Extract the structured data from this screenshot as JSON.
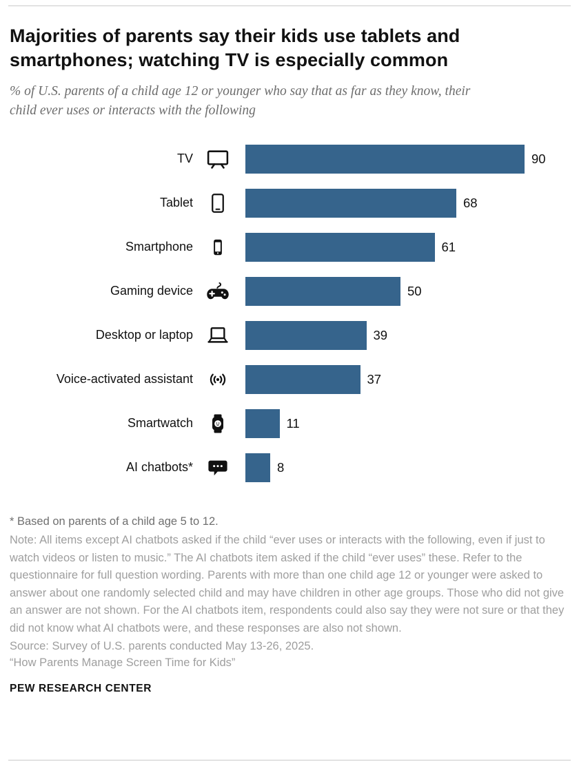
{
  "header": {
    "title": "Majorities of parents say their kids use tablets and smartphones; watching TV is especially common",
    "subtitle": "% of U.S. parents of a child age 12 or younger who say that as far as they know, their child ever uses or interacts with the following"
  },
  "chart_data": {
    "type": "bar",
    "orientation": "horizontal",
    "categories": [
      "TV",
      "Tablet",
      "Smartphone",
      "Gaming device",
      "Desktop or laptop",
      "Voice-activated assistant",
      "Smartwatch",
      "AI chatbots*"
    ],
    "values": [
      90,
      68,
      61,
      50,
      39,
      37,
      11,
      8
    ],
    "icons": [
      "tv-icon",
      "tablet-icon",
      "smartphone-icon",
      "gamepad-icon",
      "laptop-icon",
      "voice-assistant-icon",
      "smartwatch-icon",
      "chatbot-icon"
    ],
    "bar_color": "#36648c",
    "xlim": [
      0,
      100
    ],
    "grid": false,
    "legend": "none",
    "value_labels": "outside-end"
  },
  "notes": {
    "footnote": "* Based on parents of a child age 5 to 12.",
    "note": "Note: All items except AI chatbots asked if the child “ever uses or interacts with the following, even if just to watch videos or listen to music.” The AI chatbots item asked if the child “ever uses” these. Refer to the questionnaire for full question wording. Parents with more than one child age 12 or younger were asked to answer about one randomly selected child and may have children in other age groups. Those who did not give an answer are not shown. For the AI chatbots item, respondents could also say they were not sure or that they did not know what AI chatbots were, and these responses are also not shown.",
    "source": "Source: Survey of U.S. parents conducted May 13-26, 2025.",
    "report": "“How Parents Manage Screen Time for Kids”",
    "branding": "PEW RESEARCH CENTER"
  }
}
